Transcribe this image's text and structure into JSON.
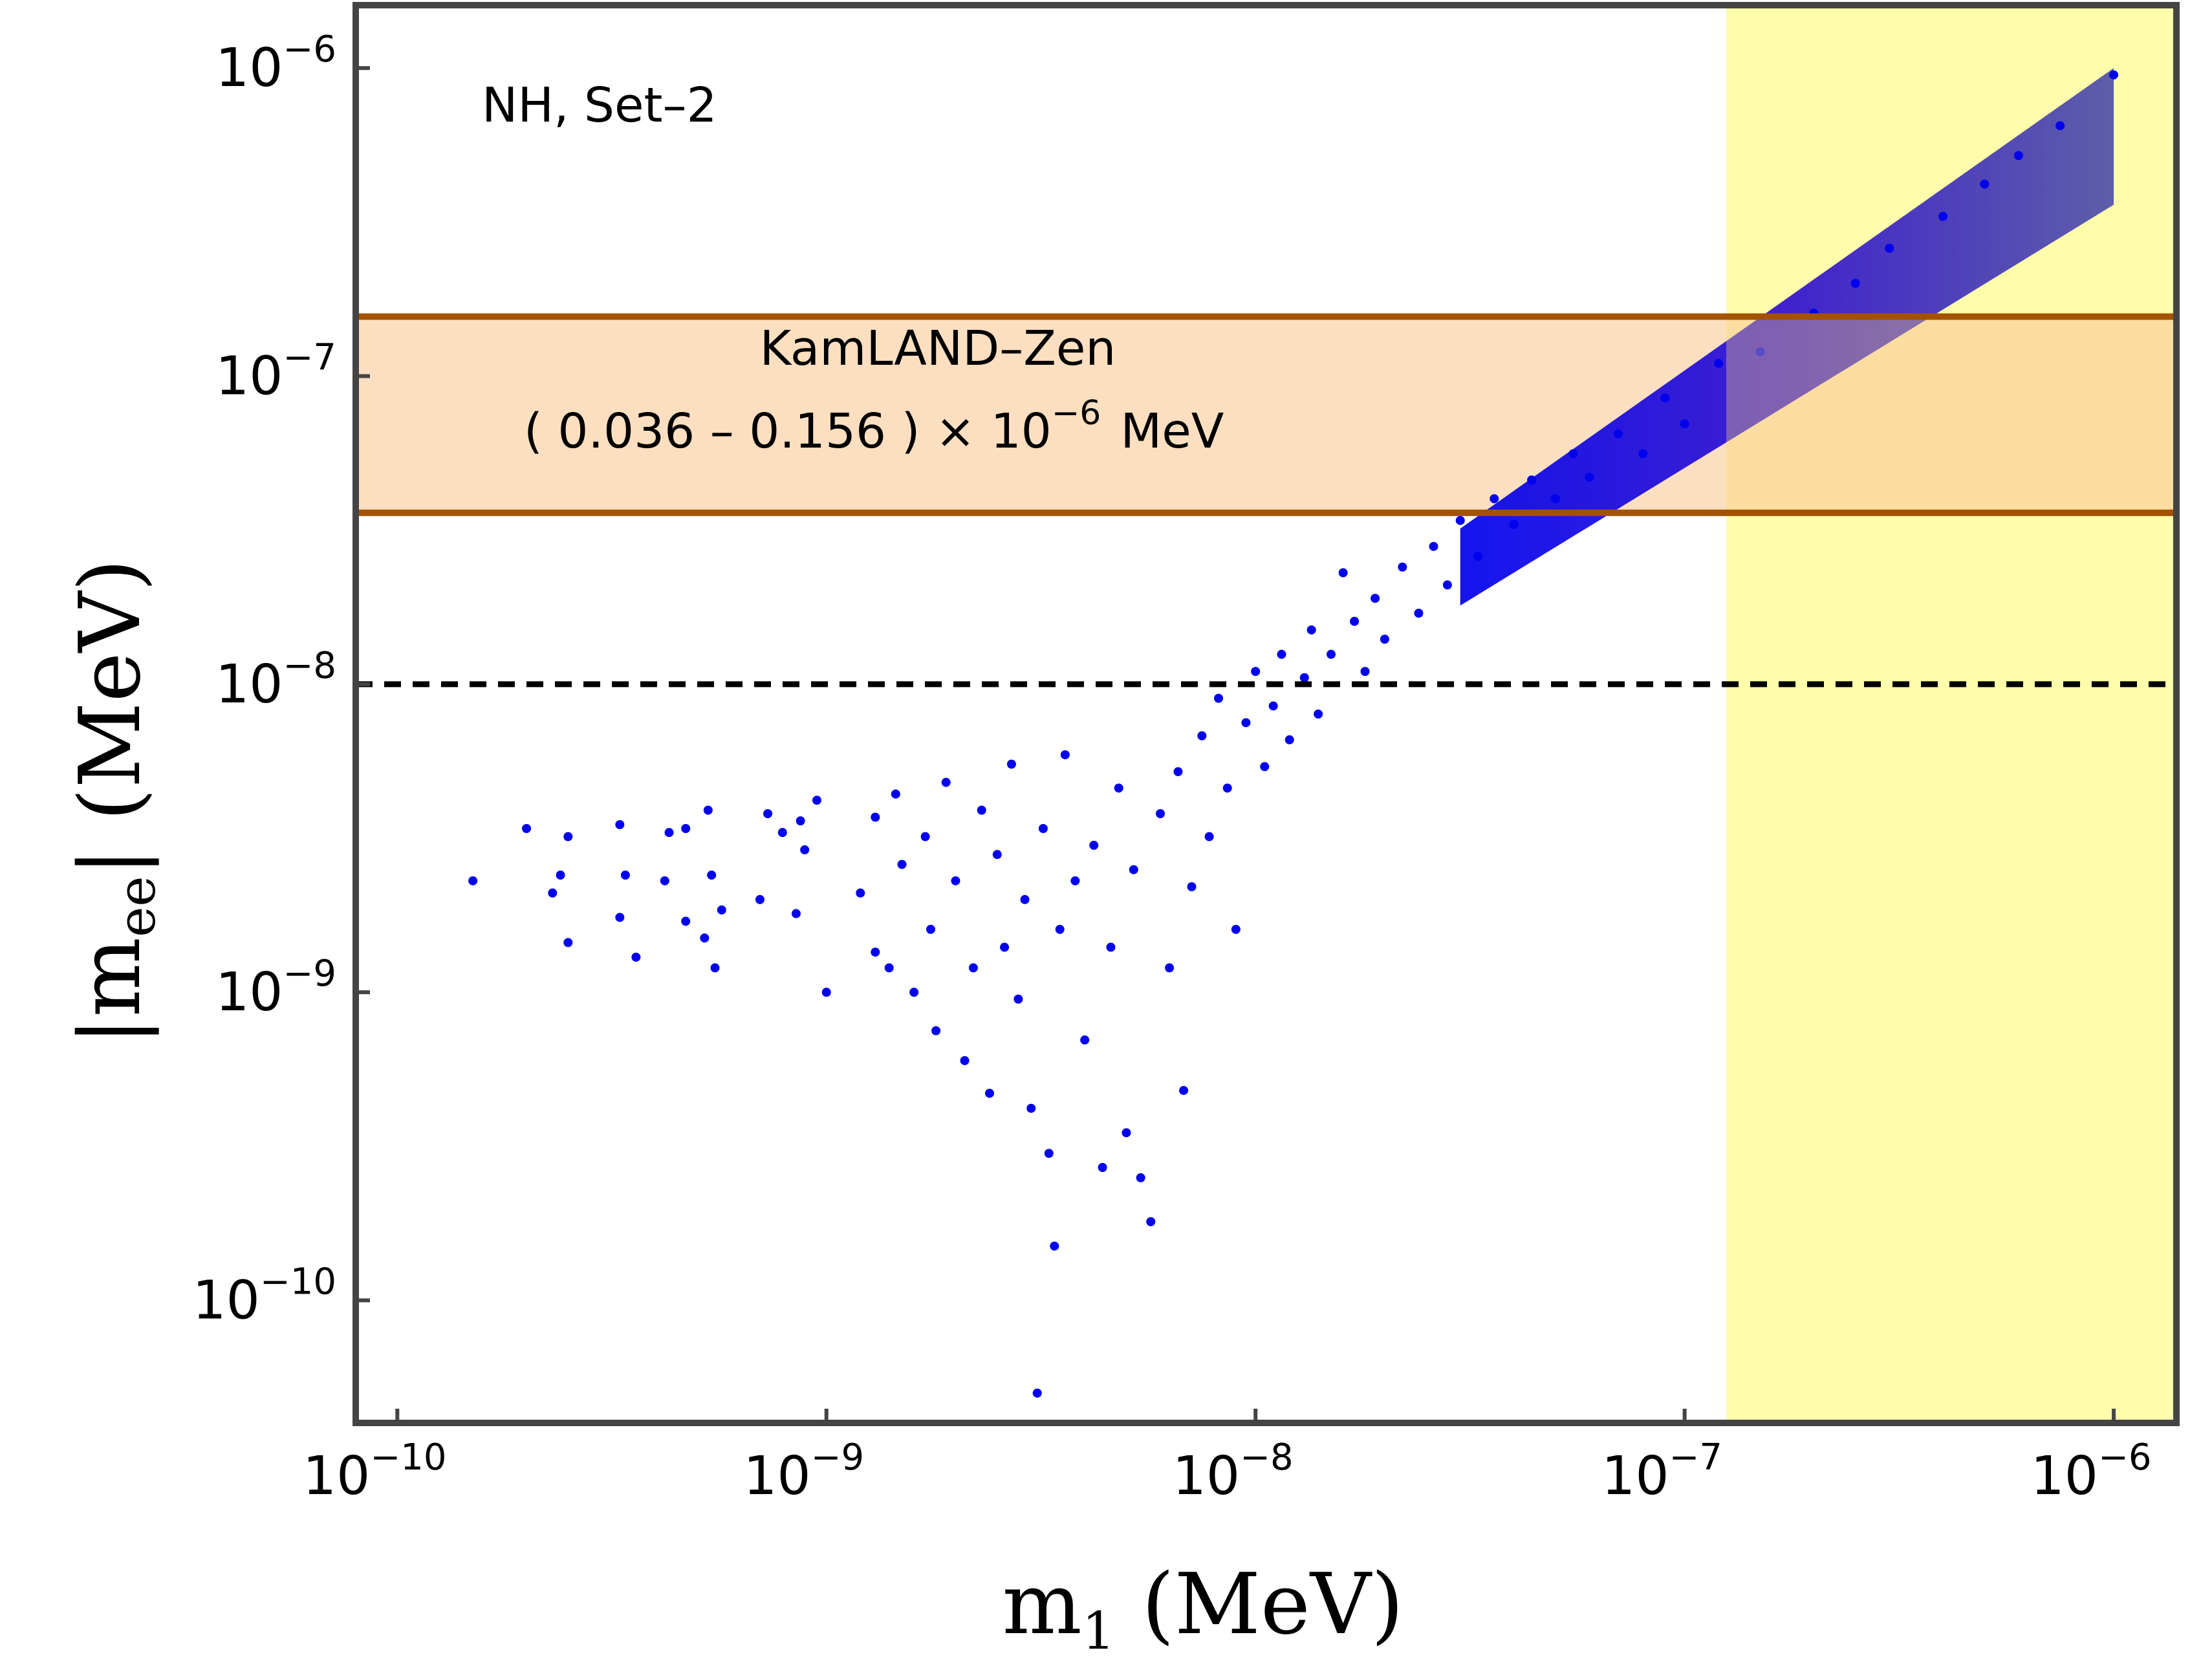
{
  "chart_data": {
    "type": "scatter",
    "title": "",
    "xlabel": "m_1 (MeV)",
    "ylabel": "|m_ee| (MeV)",
    "xscale": "log",
    "yscale": "log",
    "xlim": [
      8e-11,
      1.4e-06
    ],
    "ylim": [
      4e-11,
      1.6e-06
    ],
    "x_ticks": [
      {
        "base": "10",
        "exp": "−10",
        "value": 1e-10
      },
      {
        "base": "10",
        "exp": "−9",
        "value": 1e-09
      },
      {
        "base": "10",
        "exp": "−8",
        "value": 1e-08
      },
      {
        "base": "10",
        "exp": "−7",
        "value": 1e-07
      },
      {
        "base": "10",
        "exp": "−6",
        "value": 1e-06
      }
    ],
    "y_ticks": [
      {
        "base": "10",
        "exp": "−10",
        "value": 1e-10
      },
      {
        "base": "10",
        "exp": "−9",
        "value": 1e-09
      },
      {
        "base": "10",
        "exp": "−8",
        "value": 1e-08
      },
      {
        "base": "10",
        "exp": "−7",
        "value": 1e-07
      },
      {
        "base": "10",
        "exp": "−6",
        "value": 1e-06
      }
    ],
    "annotation": "NH, Set–2",
    "kamland_band": {
      "label_line1": "KamLAND–Zen",
      "label_line2": "( 0.036 – 0.156 ) × 10",
      "label_exp": "−6",
      "label_unit": "MeV",
      "y_range": [
        3.6e-08,
        1.56e-07
      ]
    },
    "excluded_region": {
      "x_range": [
        1.25e-07,
        1.4e-06
      ]
    },
    "reference_line": {
      "y": 1e-08,
      "style": "dashed"
    },
    "series": [
      {
        "type": "scatter",
        "points": [
          [
            1.5e-10,
            2.3e-09
          ],
          [
            2e-10,
            3.4e-09
          ],
          [
            2.3e-10,
            2.1e-09
          ],
          [
            2.4e-10,
            2.4e-09
          ],
          [
            2.5e-10,
            3.2e-09
          ],
          [
            2.5e-10,
            1.45e-09
          ],
          [
            3.3e-10,
            3.5e-09
          ],
          [
            3.3e-10,
            1.75e-09
          ],
          [
            3.4e-10,
            2.4e-09
          ],
          [
            3.6e-10,
            1.3e-09
          ],
          [
            4.2e-10,
            2.3e-09
          ],
          [
            4.3e-10,
            3.3e-09
          ],
          [
            4.7e-10,
            3.4e-09
          ],
          [
            4.7e-10,
            1.7e-09
          ],
          [
            5.2e-10,
            1.5e-09
          ],
          [
            5.3e-10,
            3.9e-09
          ],
          [
            5.4e-10,
            2.4e-09
          ],
          [
            5.5e-10,
            1.2e-09
          ],
          [
            5.7e-10,
            1.85e-09
          ],
          [
            7e-10,
            2e-09
          ],
          [
            7.3e-10,
            3.8e-09
          ],
          [
            7.9e-10,
            3.3e-09
          ],
          [
            8.5e-10,
            1.8e-09
          ],
          [
            8.7e-10,
            3.6e-09
          ],
          [
            8.9e-10,
            2.9e-09
          ],
          [
            9.5e-10,
            4.2e-09
          ],
          [
            1e-09,
            1e-09
          ],
          [
            1.2e-09,
            2.1e-09
          ],
          [
            1.3e-09,
            3.7e-09
          ],
          [
            1.3e-09,
            1.35e-09
          ],
          [
            1.4e-09,
            1.2e-09
          ],
          [
            1.45e-09,
            4.4e-09
          ],
          [
            1.5e-09,
            2.6e-09
          ],
          [
            1.6e-09,
            1e-09
          ],
          [
            1.7e-09,
            3.2e-09
          ],
          [
            1.75e-09,
            1.6e-09
          ],
          [
            1.8e-09,
            7.5e-10
          ],
          [
            1.9e-09,
            4.8e-09
          ],
          [
            2e-09,
            2.3e-09
          ],
          [
            2.1e-09,
            6e-10
          ],
          [
            2.2e-09,
            1.2e-09
          ],
          [
            2.3e-09,
            3.9e-09
          ],
          [
            2.4e-09,
            4.7e-10
          ],
          [
            2.5e-09,
            2.8e-09
          ],
          [
            2.6e-09,
            1.4e-09
          ],
          [
            2.7e-09,
            5.5e-09
          ],
          [
            2.8e-09,
            9.5e-10
          ],
          [
            2.9e-09,
            2e-09
          ],
          [
            3e-09,
            4.2e-10
          ],
          [
            3.1e-09,
            5e-11
          ],
          [
            3.2e-09,
            3.4e-09
          ],
          [
            3.3e-09,
            3e-10
          ],
          [
            3.4e-09,
            1.5e-10
          ],
          [
            3.5e-09,
            1.6e-09
          ],
          [
            3.6e-09,
            5.9e-09
          ],
          [
            3.8e-09,
            2.3e-09
          ],
          [
            4e-09,
            7e-10
          ],
          [
            4.2e-09,
            3e-09
          ],
          [
            4.4e-09,
            2.7e-10
          ],
          [
            4.6e-09,
            1.4e-09
          ],
          [
            4.8e-09,
            4.6e-09
          ],
          [
            5e-09,
            3.5e-10
          ],
          [
            5.2e-09,
            2.5e-09
          ],
          [
            5.4e-09,
            2.5e-10
          ],
          [
            5.7e-09,
            1.8e-10
          ],
          [
            6e-09,
            3.8e-09
          ],
          [
            6.3e-09,
            1.2e-09
          ],
          [
            6.6e-09,
            5.2e-09
          ],
          [
            6.8e-09,
            4.8e-10
          ],
          [
            7.1e-09,
            2.2e-09
          ],
          [
            7.5e-09,
            6.8e-09
          ],
          [
            7.8e-09,
            3.2e-09
          ],
          [
            8.2e-09,
            9e-09
          ],
          [
            8.6e-09,
            4.6e-09
          ],
          [
            9e-09,
            1.6e-09
          ],
          [
            9.5e-09,
            7.5e-09
          ],
          [
            1e-08,
            1.1e-08
          ],
          [
            1.05e-08,
            5.4e-09
          ],
          [
            1.1e-08,
            8.5e-09
          ],
          [
            1.15e-08,
            1.25e-08
          ],
          [
            1.2e-08,
            6.6e-09
          ],
          [
            1.3e-08,
            1.05e-08
          ],
          [
            1.35e-08,
            1.5e-08
          ],
          [
            1.4e-08,
            8e-09
          ],
          [
            1.5e-08,
            1.25e-08
          ],
          [
            1.6e-08,
            2.3e-08
          ],
          [
            1.7e-08,
            1.6e-08
          ],
          [
            1.8e-08,
            1.1e-08
          ],
          [
            1.9e-08,
            1.9e-08
          ],
          [
            2e-08,
            1.4e-08
          ],
          [
            2.2e-08,
            2.4e-08
          ],
          [
            2.4e-08,
            1.7e-08
          ],
          [
            2.6e-08,
            2.8e-08
          ],
          [
            2.8e-08,
            2.1e-08
          ],
          [
            3e-08,
            3.4e-08
          ],
          [
            3.3e-08,
            2.6e-08
          ],
          [
            3.6e-08,
            4e-08
          ],
          [
            4e-08,
            3.3e-08
          ],
          [
            4.4e-08,
            4.6e-08
          ],
          [
            5e-08,
            4e-08
          ],
          [
            5.5e-08,
            5.6e-08
          ],
          [
            6e-08,
            4.7e-08
          ],
          [
            7e-08,
            6.5e-08
          ],
          [
            8e-08,
            5.6e-08
          ],
          [
            9e-08,
            8.5e-08
          ],
          [
            1e-07,
            7e-08
          ],
          [
            1.2e-07,
            1.1e-07
          ],
          [
            1.5e-07,
            1.2e-07
          ],
          [
            2e-07,
            1.6e-07
          ],
          [
            2.5e-07,
            2e-07
          ],
          [
            3e-07,
            2.6e-07
          ],
          [
            4e-07,
            3.3e-07
          ],
          [
            5e-07,
            4.2e-07
          ],
          [
            6e-07,
            5.2e-07
          ],
          [
            7.5e-07,
            6.5e-07
          ],
          [
            1e-06,
            9.5e-07
          ]
        ]
      }
    ],
    "band": {
      "x_range": [
        3e-08,
        1e-06
      ],
      "upper_at_left": 3.2e-08,
      "upper_at_right": 1e-06,
      "lower_at_left": 1.8e-08,
      "lower_at_right": 3.6e-07
    },
    "colors": {
      "points": "#0000ee",
      "band_dark": "#3010d0",
      "band_light": "#5050a8",
      "kamland_fill": "#fcd9b6",
      "kamland_line": "#a55200",
      "excluded_fill": "#fdfdac",
      "axes": "#444444"
    }
  }
}
